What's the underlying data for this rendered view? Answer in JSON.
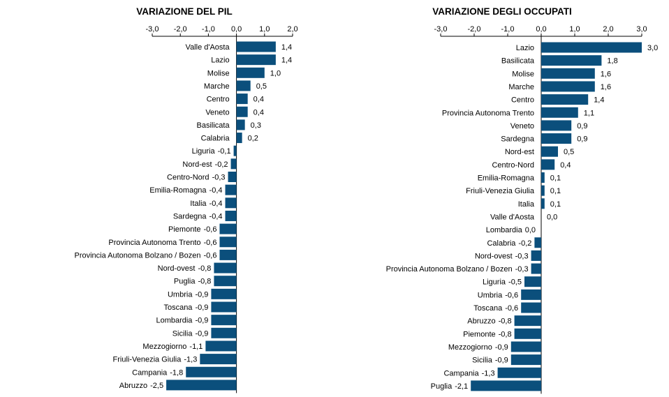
{
  "chart_data": [
    {
      "type": "bar",
      "orientation": "horizontal",
      "title": "VARIAZIONE DEL PIL",
      "xlim": [
        -3.0,
        2.0
      ],
      "ticks": [
        "-3,0",
        "-2,0",
        "-1,0",
        "0,0",
        "1,0",
        "2,0"
      ],
      "tick_values": [
        -3,
        -2,
        -1,
        0,
        1,
        2
      ],
      "grid": false,
      "bar_color": "#0b4f7c",
      "categories": [
        "Valle d'Aosta",
        "Lazio",
        "Molise",
        "Marche",
        "Centro",
        "Veneto",
        "Basilicata",
        "Calabria",
        "Liguria",
        "Nord-est",
        "Centro-Nord",
        "Emilia-Romagna",
        "Italia",
        "Sardegna",
        "Piemonte",
        "Provincia Autonoma Trento",
        "Provincia Autonoma Bolzano / Bozen",
        "Nord-ovest",
        "Puglia",
        "Umbria",
        "Toscana",
        "Lombardia",
        "Sicilia",
        "Mezzogiorno",
        "Friuli-Venezia Giulia",
        "Campania",
        "Abruzzo"
      ],
      "values": [
        1.4,
        1.4,
        1.0,
        0.5,
        0.4,
        0.4,
        0.3,
        0.2,
        -0.1,
        -0.2,
        -0.3,
        -0.4,
        -0.4,
        -0.4,
        -0.6,
        -0.6,
        -0.6,
        -0.8,
        -0.8,
        -0.9,
        -0.9,
        -0.9,
        -0.9,
        -1.1,
        -1.3,
        -1.8,
        -2.5
      ],
      "value_labels": [
        "1,4",
        "1,4",
        "1,0",
        "0,5",
        "0,4",
        "0,4",
        "0,3",
        "0,2",
        "-0,1",
        "-0,2",
        "-0,3",
        "-0,4",
        "-0,4",
        "-0,4",
        "-0,6",
        "-0,6",
        "-0,6",
        "-0,8",
        "-0,8",
        "-0,9",
        "-0,9",
        "-0,9",
        "-0,9",
        "-1,1",
        "-1,3",
        "-1,8",
        "-2,5"
      ]
    },
    {
      "type": "bar",
      "orientation": "horizontal",
      "title": "VARIAZIONE DEGLI OCCUPATI",
      "xlim": [
        -3.0,
        3.0
      ],
      "ticks": [
        "-3,0",
        "-2,0",
        "-1,0",
        "0,0",
        "1,0",
        "2,0",
        "3,0"
      ],
      "tick_values": [
        -3,
        -2,
        -1,
        0,
        1,
        2,
        3
      ],
      "grid": false,
      "bar_color": "#0b4f7c",
      "categories": [
        "Lazio",
        "Basilicata",
        "Molise",
        "Marche",
        "Centro",
        "Provincia Autonoma Trento",
        "Veneto",
        "Sardegna",
        "Nord-est",
        "Centro-Nord",
        "Emilia-Romagna",
        "Friuli-Venezia Giulia",
        "Italia",
        "Valle d'Aosta",
        "Lombardia",
        "Calabria",
        "Nord-ovest",
        "Provincia Autonoma Bolzano / Bozen",
        "Liguria",
        "Umbria",
        "Toscana",
        "Abruzzo",
        "Piemonte",
        "Mezzogiorno",
        "Sicilia",
        "Campania",
        "Puglia"
      ],
      "values": [
        3.0,
        1.8,
        1.6,
        1.6,
        1.4,
        1.1,
        0.9,
        0.9,
        0.5,
        0.4,
        0.1,
        0.1,
        0.1,
        0.0,
        0.0,
        -0.2,
        -0.3,
        -0.3,
        -0.5,
        -0.6,
        -0.6,
        -0.8,
        -0.8,
        -0.9,
        -0.9,
        -1.3,
        -2.1
      ],
      "value_labels": [
        "3,0",
        "1,8",
        "1,6",
        "1,6",
        "1,4",
        "1,1",
        "0,9",
        "0,9",
        "0,5",
        "0,4",
        "0,1",
        "0,1",
        "0,1",
        "0,0",
        "0,0",
        "-0,2",
        "-0,3",
        "-0,3",
        "-0,5",
        "-0,6",
        "-0,6",
        "-0,8",
        "-0,8",
        "-0,9",
        "-0,9",
        "-1,3",
        "-2,1"
      ]
    }
  ]
}
